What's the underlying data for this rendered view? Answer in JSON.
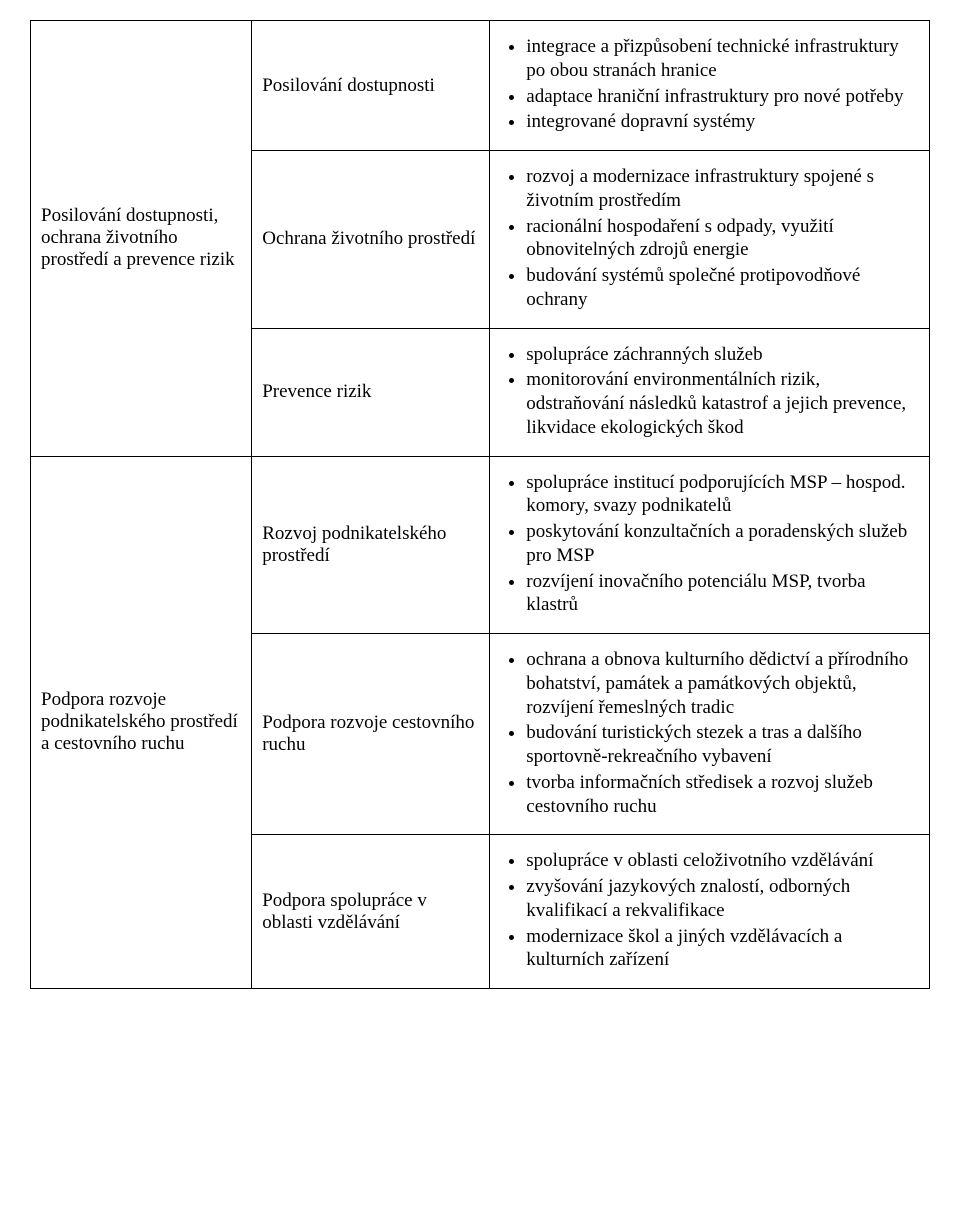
{
  "table": {
    "rows": [
      {
        "group": "Posilování dostupnosti, ochrana životního prostředí a prevence rizik",
        "span": 3,
        "area": "Posilování dostupnosti",
        "items": [
          "integrace a přizpůsobení technické infrastruktury po obou stranách hranice",
          "adaptace hraniční infrastruktury pro nové potřeby",
          "integrované dopravní systémy"
        ]
      },
      {
        "area": "Ochrana životního prostředí",
        "items": [
          "rozvoj a modernizace infrastruktury spojené s životním prostředím",
          "racionální hospodaření s odpady, využití obnovitelných zdrojů energie",
          "budování systémů společné protipovodňové ochrany"
        ]
      },
      {
        "area": "Prevence rizik",
        "items": [
          "spolupráce záchranných služeb",
          "monitorování environmentálních rizik, odstraňování následků katastrof a jejich prevence, likvidace ekologických škod"
        ]
      },
      {
        "group": "Podpora rozvoje podnikatelského prostředí a cestovního ruchu",
        "span": 3,
        "area": "Rozvoj podnikatelského prostředí",
        "items": [
          "spolupráce institucí podporujících MSP – hospod. komory, svazy podnikatelů",
          "poskytování konzultačních a poradenských služeb pro MSP",
          "rozvíjení inovačního potenciálu MSP, tvorba klastrů"
        ]
      },
      {
        "area": "Podpora rozvoje cestovního ruchu",
        "items": [
          "ochrana a obnova kulturního dědictví a přírodního bohatství, památek a památkových objektů, rozvíjení řemeslných tradic",
          "budování turistických stezek a tras a dalšího sportovně-rekreačního vybavení",
          "tvorba informačních středisek a rozvoj služeb cestovního ruchu"
        ]
      },
      {
        "area": "Podpora spolupráce v oblasti vzdělávání",
        "items": [
          "spolupráce v oblasti celoživotního vzdělávání",
          "zvyšování jazykových znalostí, odborných kvalifikací a rekvalifikace",
          "modernizace škol a jiných vzdělávacích a kulturních zařízení"
        ]
      }
    ]
  }
}
